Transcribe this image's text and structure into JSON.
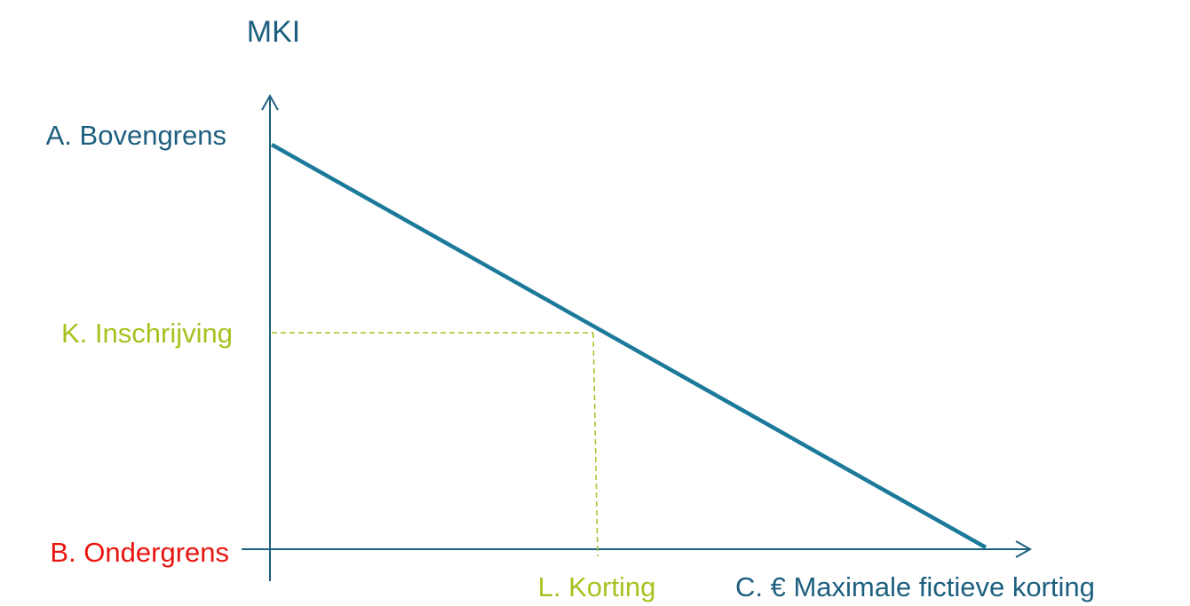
{
  "title": "MKI",
  "y_labels": {
    "top": "A. Bovengrens",
    "middle": "K. Inschrijving",
    "bottom": "B. Ondergrens"
  },
  "x_labels": {
    "middle": "L. Korting",
    "end": "C. € Maximale fictieve korting"
  }
}
